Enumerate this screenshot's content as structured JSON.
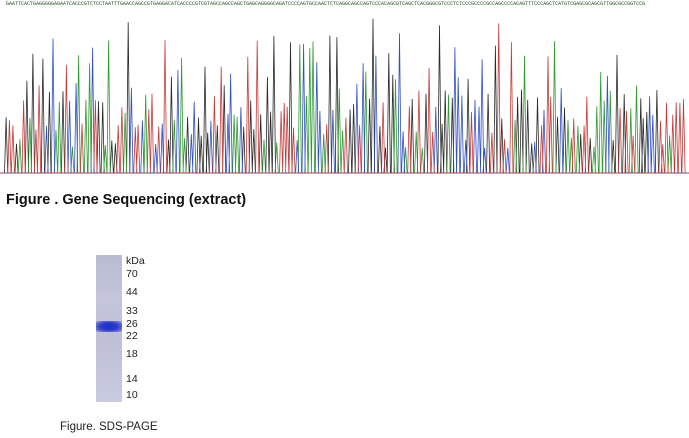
{
  "sequence_header": "GAATTCACTGAGGGGGAGAATCACCCGTCTCCTAATTTGAACCAGCCGTGAGGACATCACCCCGTCGTAGCCAGCCAGCTGAGCAGGGGCAGATCCCCAGTGCCAACTCTCAGGCAGCCAGTCCCACAGCGTCAGCTCACGGGCGTCCCTCTCCCGCCCCGCCAGCCCCACAGTTTCCCAGCTCATGTCGAGCGCAGCGTTGGCGCCGGTCCG",
  "figure1": {
    "caption": "Figure . Gene Sequencing (extract)"
  },
  "figure2": {
    "caption": "Figure. SDS-PAGE",
    "unit_label": "kDa",
    "markers": [
      "70",
      "44",
      "33",
      "26",
      "22",
      "18",
      "14",
      "10"
    ],
    "lane_color": "#c0c1d9",
    "band_color": "#2233c6"
  },
  "trace_colors": [
    "#2a2a2a",
    "#2f9a2f",
    "#2f4fc6",
    "#c83a3a"
  ]
}
